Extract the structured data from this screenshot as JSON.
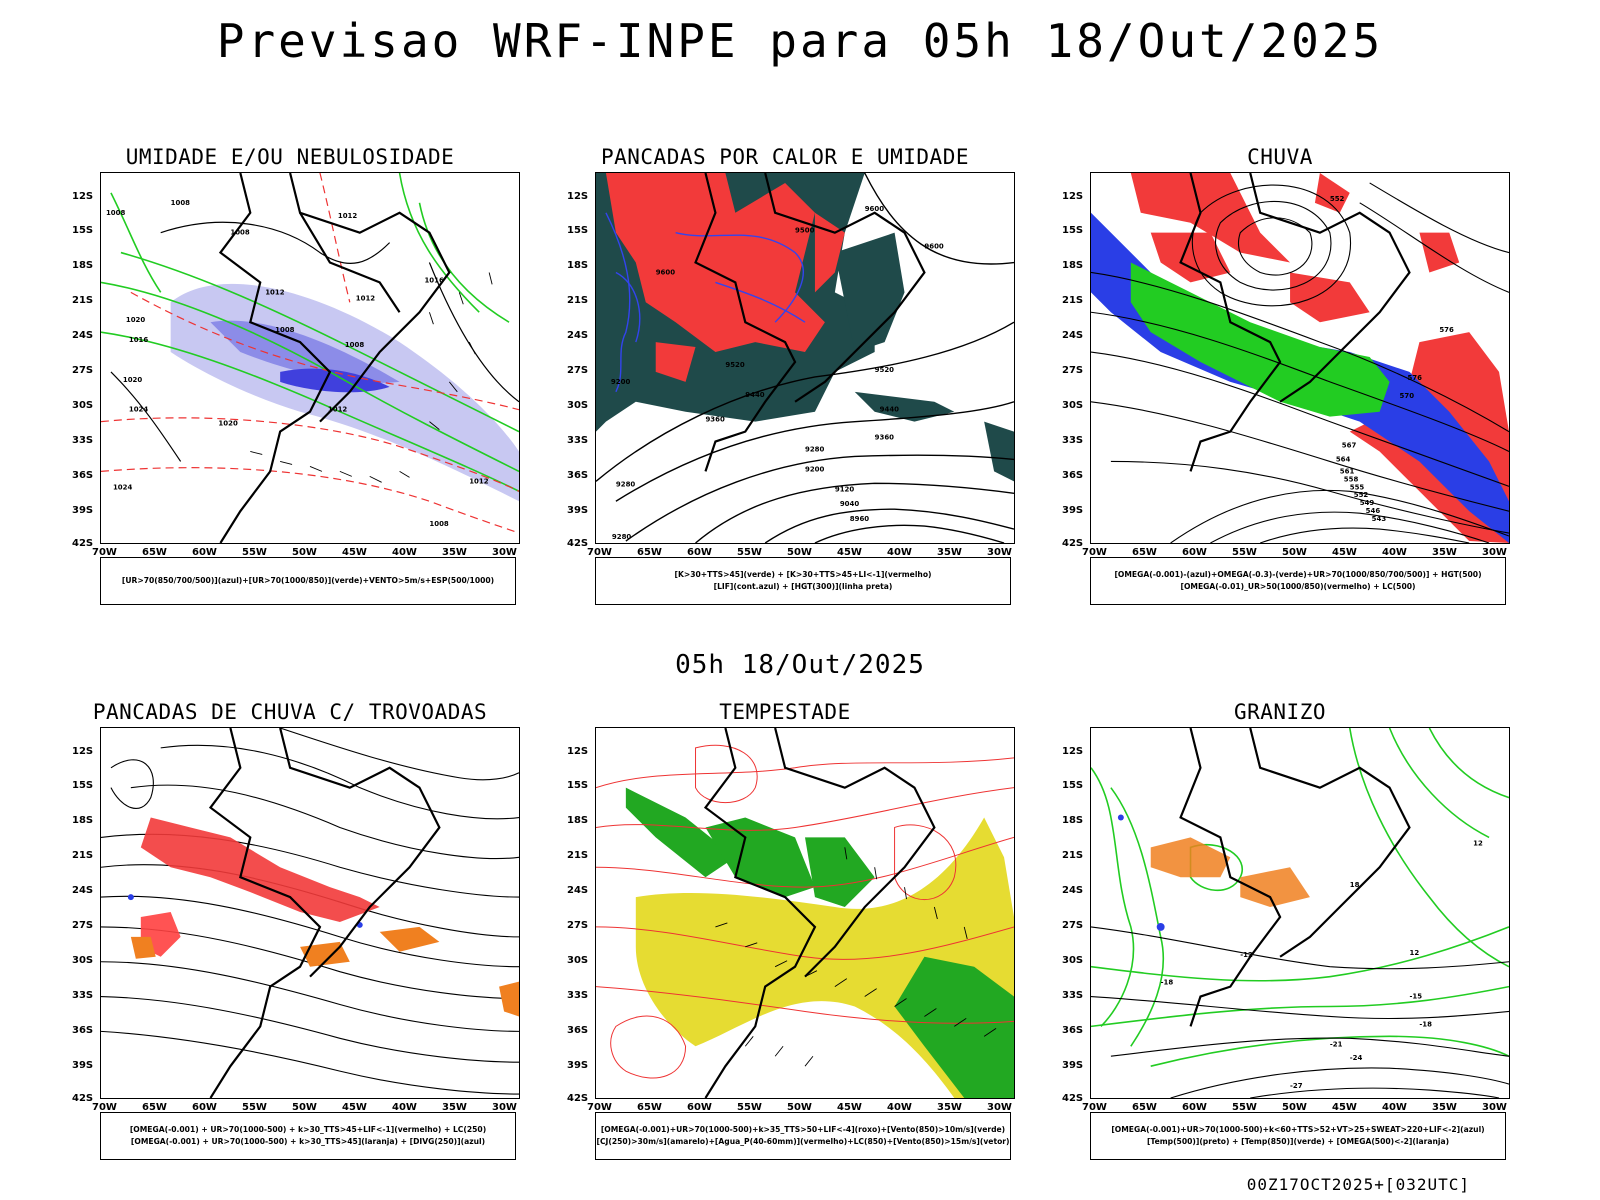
{
  "title": "Previsao WRF-INPE  para 05h 18/Out/2025",
  "mid_timestamp": "05h 18/Out/2025",
  "footer": "00Z17OCT2025+[032UTC]",
  "axes": {
    "lat": [
      "12S",
      "15S",
      "18S",
      "21S",
      "24S",
      "27S",
      "30S",
      "33S",
      "36S",
      "39S",
      "42S"
    ],
    "lon": [
      "70W",
      "65W",
      "60W",
      "55W",
      "50W",
      "45W",
      "40W",
      "35W",
      "30W"
    ]
  },
  "panels": [
    {
      "title": "UMIDADE E/OU NEBULOSIDADE",
      "legend": [
        "[UR>70(850/700/500)](azul)+[UR>70(1000/850)](verde)+VENTO>5m/s+ESP(500/1000)"
      ]
    },
    {
      "title": "PANCADAS POR CALOR E UMIDADE",
      "legend": [
        "[K>30+TTS>45](verde) + [K>30+TTS>45+LI<-1](vermelho)",
        "[LIF](cont.azul) + [HGT(300)](linha preta)"
      ]
    },
    {
      "title": "CHUVA",
      "legend": [
        "[OMEGA(-0.001)-(azul)+OMEGA(-0.3)-(verde)+UR>70(1000/850/700/500)] + HGT(500)",
        "[OMEGA(-0.01)_UR>50(1000/850)(vermelho) + LC(500)"
      ]
    },
    {
      "title": "PANCADAS DE CHUVA C/ TROVOADAS",
      "legend": [
        "[OMEGA(-0.001) + UR>70(1000-500) + k>30_TTS>45+LIF<-1](vermelho) + LC(250)",
        "[OMEGA(-0.001) + UR>70(1000-500) + k>30_TTS>45](laranja) + [DIVG(250)](azul)"
      ]
    },
    {
      "title": "TEMPESTADE",
      "legend": [
        "[OMEGA(-0.001)+UR>70(1000-500)+k>35_TTS>50+LIF<-4](roxo)+[Vento(850)>10m/s](verde)",
        "[CJ(250)>30m/s](amarelo)+[Agua_P(40-60mm)](vermelho)+LC(850)+[Vento(850)>15m/s](vetor)"
      ]
    },
    {
      "title": "GRANIZO",
      "legend": [
        "[OMEGA(-0.001)+UR>70(1000-500)+k<60+TTS>52+VT>25+SWEAT>220+LIF<-2](azul)",
        "[Temp(500)](preto) + [Temp(850)](verde) + [OMEGA(500)<-2](laranja)"
      ]
    }
  ],
  "map_labels": {
    "p1": [
      "1008",
      "1008",
      "1012",
      "1008",
      "1012",
      "1012",
      "1016",
      "1008",
      "1008",
      "1016",
      "1020",
      "1020",
      "1024",
      "1024",
      "1012",
      "1020",
      "1012",
      "1008"
    ],
    "p2": [
      "9600",
      "9600",
      "9600",
      "9500",
      "9520",
      "9440",
      "9360",
      "9280",
      "9440",
      "9520",
      "9360",
      "9280",
      "9200",
      "9120",
      "9040",
      "8960",
      "9280",
      "9200"
    ],
    "p3": [
      "552",
      "576",
      "576",
      "570",
      "567",
      "564",
      "561",
      "558",
      "555",
      "552",
      "549",
      "546",
      "543"
    ],
    "p6": [
      "12",
      "12",
      "-18",
      "-15",
      "-18",
      "-21",
      "-24",
      "-27",
      "-12",
      "18"
    ]
  }
}
